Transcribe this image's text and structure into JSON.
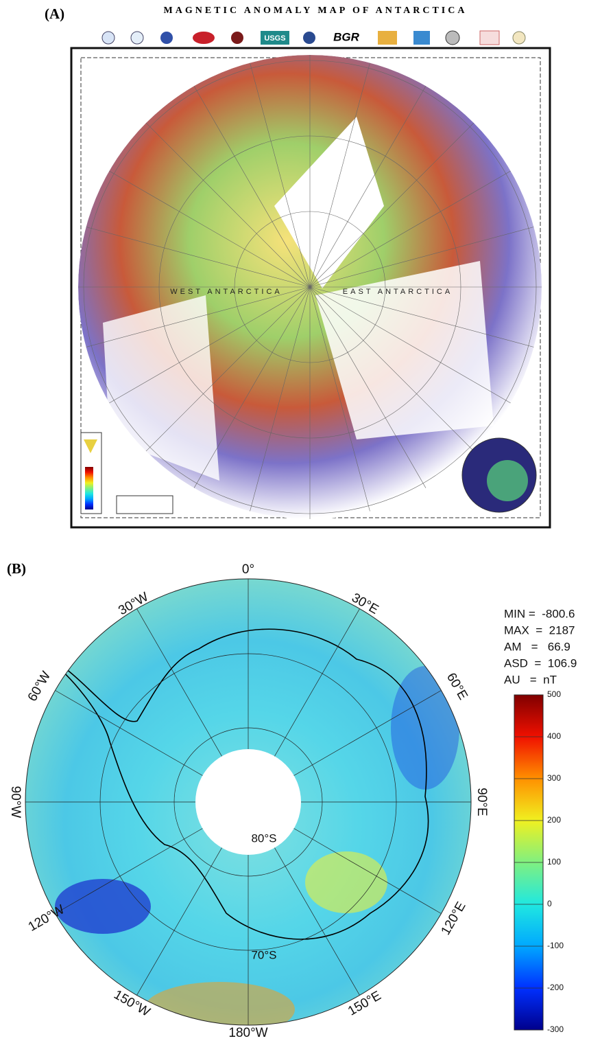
{
  "panel_a": {
    "label": "(A)",
    "title": "MAGNETIC ANOMALY MAP OF ANTARCTICA",
    "logos": [
      "USGS",
      "BGR"
    ],
    "region_labels": [
      "WEST ANTARCTICA",
      "EAST ANTARCTICA"
    ]
  },
  "panel_b": {
    "label": "(B)",
    "longitude_labels": [
      "0°",
      "30°W",
      "30°E",
      "60°W",
      "60°E",
      "90°W",
      "90°E",
      "120°W",
      "120°E",
      "150°W",
      "150°E",
      "180°W"
    ],
    "latitude_labels": [
      "80°S",
      "70°S"
    ],
    "stats": [
      "MIN =  -800.6",
      "MAX  =  2187",
      "AM   =   66.9",
      "ASD  =  106.9",
      "AU   =  nT"
    ],
    "colorbar": {
      "lim": [
        -300,
        500
      ],
      "ticks": [
        -300,
        -200,
        -100,
        0,
        100,
        200,
        300,
        400,
        500
      ]
    }
  }
}
